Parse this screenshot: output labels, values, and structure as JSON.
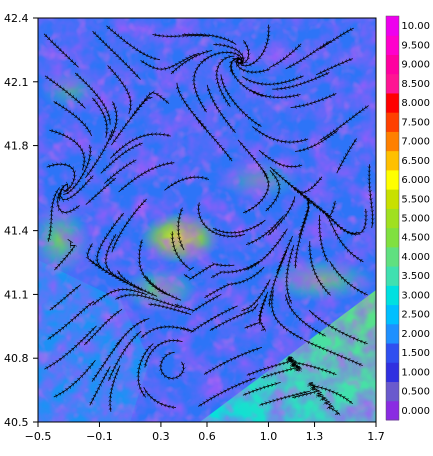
{
  "chart_data": {
    "type": "heatmap",
    "title": "",
    "xlabel": "",
    "ylabel": "",
    "xlim": [
      -0.5,
      1.7
    ],
    "ylim": [
      40.5,
      42.4
    ],
    "x_ticks": [
      -0.5,
      -0.1,
      0.3,
      0.6,
      1.0,
      1.3,
      1.7
    ],
    "x_tick_labels": [
      "−0.5",
      "−0.1",
      "0.3",
      "0.6",
      "1.0",
      "1.3",
      "1.7"
    ],
    "y_ticks": [
      40.5,
      40.8,
      41.1,
      41.4,
      41.8,
      42.1,
      42.4
    ],
    "y_tick_labels": [
      "40.5",
      "40.8",
      "41.1",
      "41.4",
      "41.8",
      "42.1",
      "42.4"
    ],
    "overlay": "streamlines with arrows",
    "colorbar": {
      "labels": [
        "0.000",
        "0.500",
        "1.000",
        "1.500",
        "2.000",
        "2.500",
        "3.000",
        "3.500",
        "4.000",
        "4.500",
        "5.000",
        "5.500",
        "6.000",
        "6.500",
        "7.000",
        "7.500",
        "8.000",
        "8.500",
        "9.000",
        "9.500",
        "10.00"
      ],
      "colors": [
        "#8a2be2",
        "#6a5acd",
        "#3030e0",
        "#2f4ff0",
        "#1e90ff",
        "#00bfff",
        "#00e0e0",
        "#40e0b0",
        "#60e080",
        "#80e040",
        "#a0e020",
        "#c8e000",
        "#ffff00",
        "#ffc000",
        "#ff8000",
        "#ff4000",
        "#ff0000",
        "#ff1493",
        "#ff00a0",
        "#ff00cc",
        "#ee00ee"
      ]
    }
  }
}
